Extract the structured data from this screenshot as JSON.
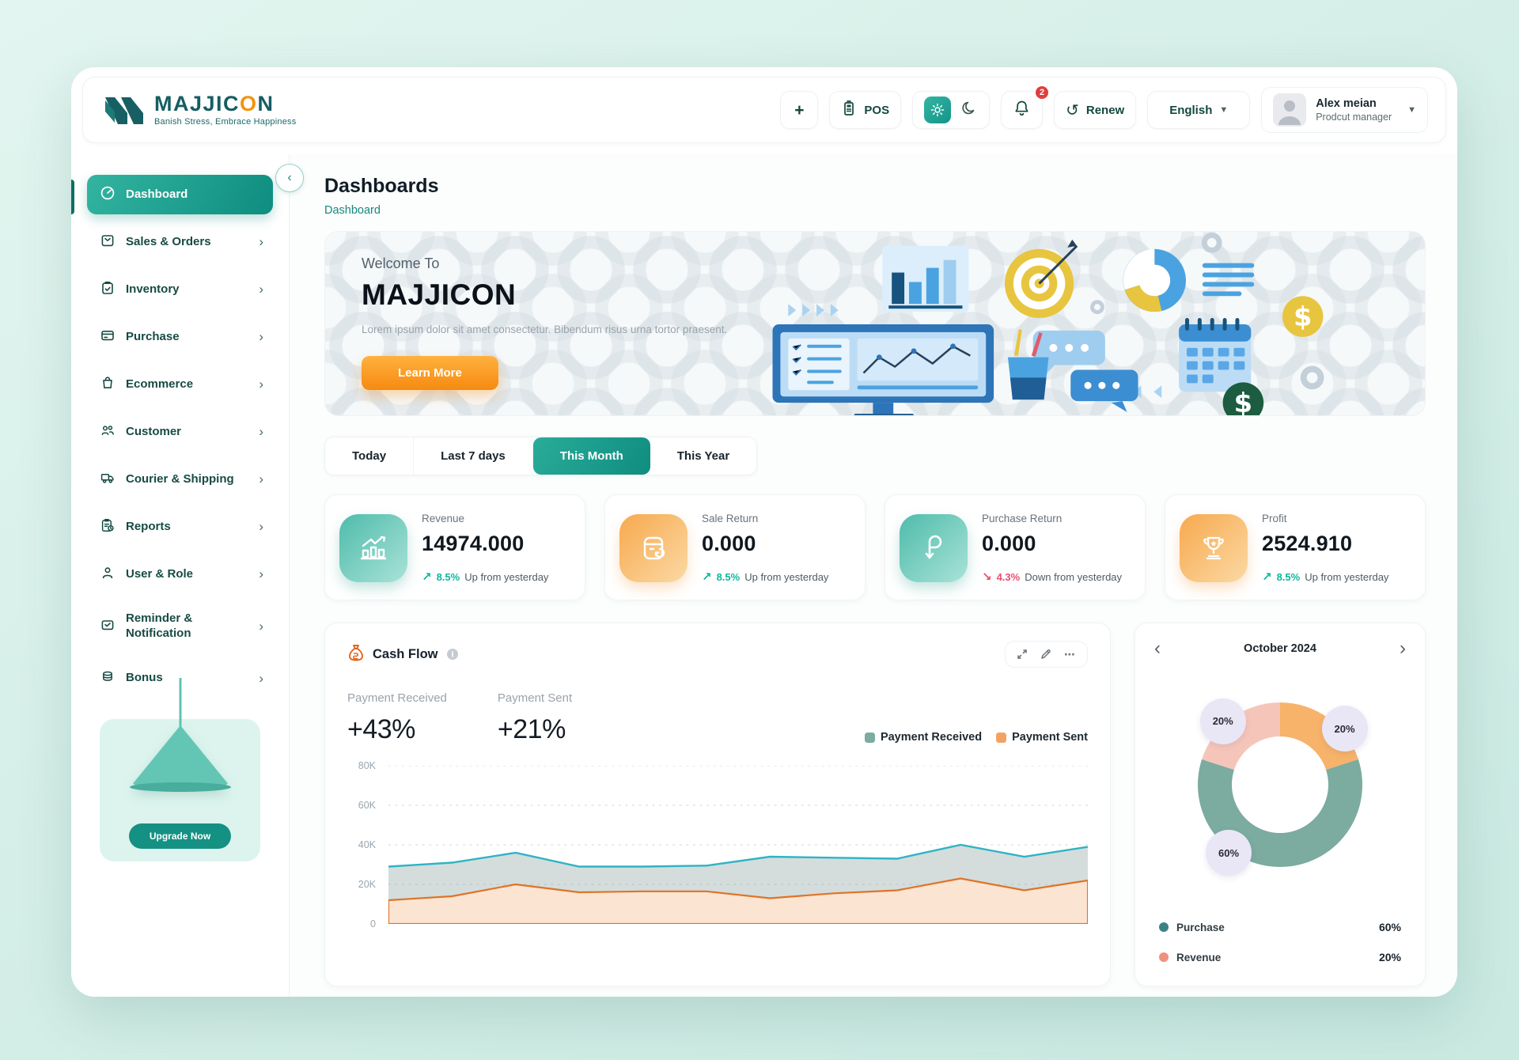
{
  "header": {
    "logo": {
      "part1": "MAJJIC",
      "o": "O",
      "part2": "N",
      "tagline": "Banish Stress, Embrace Happiness"
    },
    "actions": {
      "add_label": "+",
      "pos_label": "POS",
      "notifications_count": "2",
      "renew_label": "Renew",
      "language_selected": "English"
    },
    "profile": {
      "name": "Alex meian",
      "role": "Prodcut manager"
    }
  },
  "sidebar": {
    "items": [
      {
        "label": "Dashboard",
        "icon": "dashboard-icon",
        "active": true
      },
      {
        "label": "Sales & Orders",
        "icon": "sales-orders-icon"
      },
      {
        "label": "Inventory",
        "icon": "inventory-icon"
      },
      {
        "label": "Purchase",
        "icon": "purchase-icon"
      },
      {
        "label": "Ecommerce",
        "icon": "ecommerce-icon"
      },
      {
        "label": "Customer",
        "icon": "customer-icon"
      },
      {
        "label": "Courier & Shipping",
        "icon": "courier-icon"
      },
      {
        "label": "Reports",
        "icon": "reports-icon"
      },
      {
        "label": "User & Role",
        "icon": "user-role-icon"
      },
      {
        "label": "Reminder & Notification",
        "icon": "reminder-icon"
      },
      {
        "label": "Bonus",
        "icon": "bonus-icon"
      }
    ],
    "upgrade_label": "Upgrade Now"
  },
  "page": {
    "title": "Dashboards",
    "breadcrumb": "Dashboard"
  },
  "banner": {
    "welcome": "Welcome To",
    "brand": "MAJJICON",
    "description": "Lorem ipsum dolor sit amet consectetur. Bibendum risus urna tortor praesent.",
    "cta": "Learn More"
  },
  "filters": {
    "tabs": [
      "Today",
      "Last 7 days",
      "This Month",
      "This Year"
    ],
    "active": "This Month"
  },
  "stats": [
    {
      "label": "Revenue",
      "value": "14974.000",
      "delta": "8.5%",
      "delta_text": "Up from yesterday",
      "direction": "up",
      "icon": "revenue-chart-icon",
      "icon_color": "teal"
    },
    {
      "label": "Sale Return",
      "value": "0.000",
      "delta": "8.5%",
      "delta_text": "Up from yesterday",
      "direction": "up",
      "icon": "sale-return-icon",
      "icon_color": "orange"
    },
    {
      "label": "Purchase Return",
      "value": "0.000",
      "delta": "4.3%",
      "delta_text": "Down from yesterday",
      "direction": "down",
      "icon": "purchase-return-icon",
      "icon_color": "teal"
    },
    {
      "label": "Profit",
      "value": "2524.910",
      "delta": "8.5%",
      "delta_text": "Up from yesterday",
      "direction": "up",
      "icon": "trophy-icon",
      "icon_color": "orange"
    }
  ],
  "chart_data": [
    {
      "type": "area",
      "title": "Cash Flow",
      "summary": [
        {
          "label": "Payment Received",
          "value": "+43%"
        },
        {
          "label": "Payment Sent",
          "value": "+21%"
        }
      ],
      "legend": [
        "Payment Received",
        "Payment Sent"
      ],
      "legend_colors": [
        "#7caba1",
        "#f4a261"
      ],
      "y_ticks": [
        "80K",
        "60K",
        "40K",
        "20K",
        "0"
      ],
      "ylim": [
        0,
        80000
      ],
      "grid": "dashed-horizontal",
      "series": [
        {
          "name": "Payment Received",
          "color": "#2fb4c4",
          "fill": "rgba(122,150,146,0.32)",
          "values": [
            29000,
            31000,
            36000,
            29000,
            29000,
            29500,
            34000,
            33500,
            33000,
            40000,
            34000,
            39000
          ]
        },
        {
          "name": "Payment Sent",
          "color": "#df7327",
          "fill": "#fbe4d2",
          "values": [
            12000,
            14000,
            20000,
            16000,
            16500,
            16500,
            13000,
            15500,
            17000,
            23000,
            17000,
            22000
          ]
        }
      ]
    },
    {
      "type": "donut",
      "title": "October 2024",
      "slices": [
        {
          "label": "20%",
          "value": 20,
          "color": "#f7b369",
          "label_angle": 49
        },
        {
          "label": "60%",
          "value": 60,
          "color": "#7cab9f",
          "label_angle": 217
        },
        {
          "label": "20%",
          "value": 20,
          "color": "#f6c5ba",
          "label_angle": 318
        }
      ],
      "legend": [
        {
          "label": "Purchase",
          "value": "60%",
          "color": "#3d8184"
        },
        {
          "label": "Revenue",
          "value": "20%",
          "color": "#f0907f"
        }
      ]
    }
  ]
}
